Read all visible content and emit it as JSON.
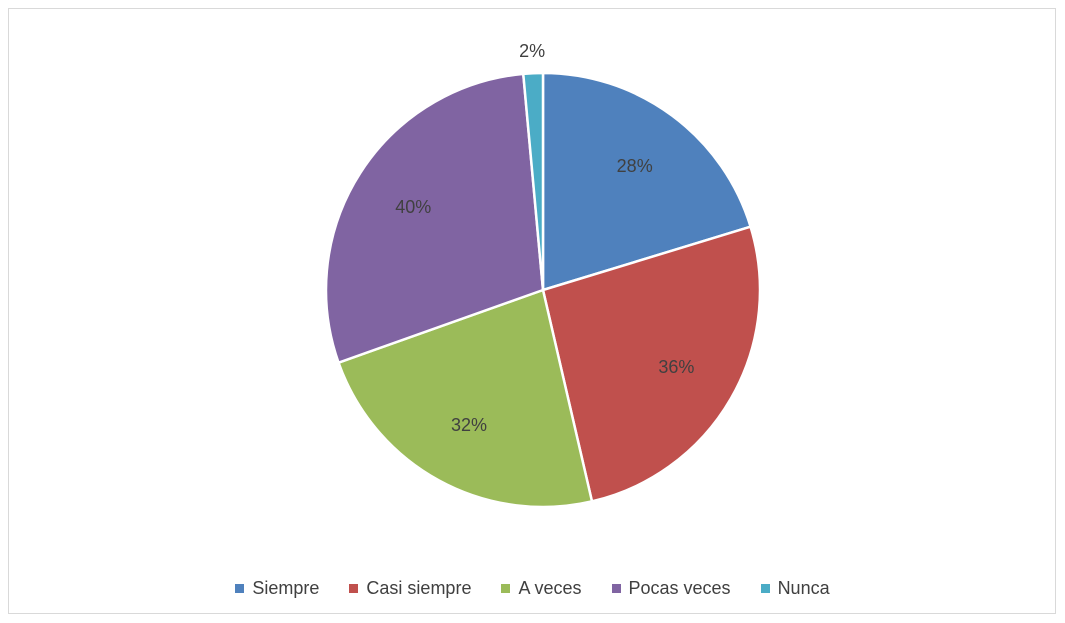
{
  "chart_data": {
    "type": "pie",
    "title": "",
    "categories": [
      "Siempre",
      "Casi siempre",
      "A veces",
      "Pocas veces",
      "Nunca"
    ],
    "values": [
      28,
      36,
      32,
      40,
      2
    ],
    "labels": [
      "28%",
      "36%",
      "32%",
      "40%",
      "2%"
    ],
    "colors": [
      "#4F81BD",
      "#C0504D",
      "#9BBB59",
      "#8064A2",
      "#4BACC6"
    ],
    "legend_position": "bottom",
    "start_angle_deg": 0,
    "direction": "clockwise"
  },
  "legend": {
    "items": [
      {
        "label": "Siempre",
        "color": "#4F81BD"
      },
      {
        "label": "Casi siempre",
        "color": "#C0504D"
      },
      {
        "label": "A veces",
        "color": "#9BBB59"
      },
      {
        "label": "Pocas veces",
        "color": "#8064A2"
      },
      {
        "label": "Nunca",
        "color": "#4BACC6"
      }
    ]
  }
}
